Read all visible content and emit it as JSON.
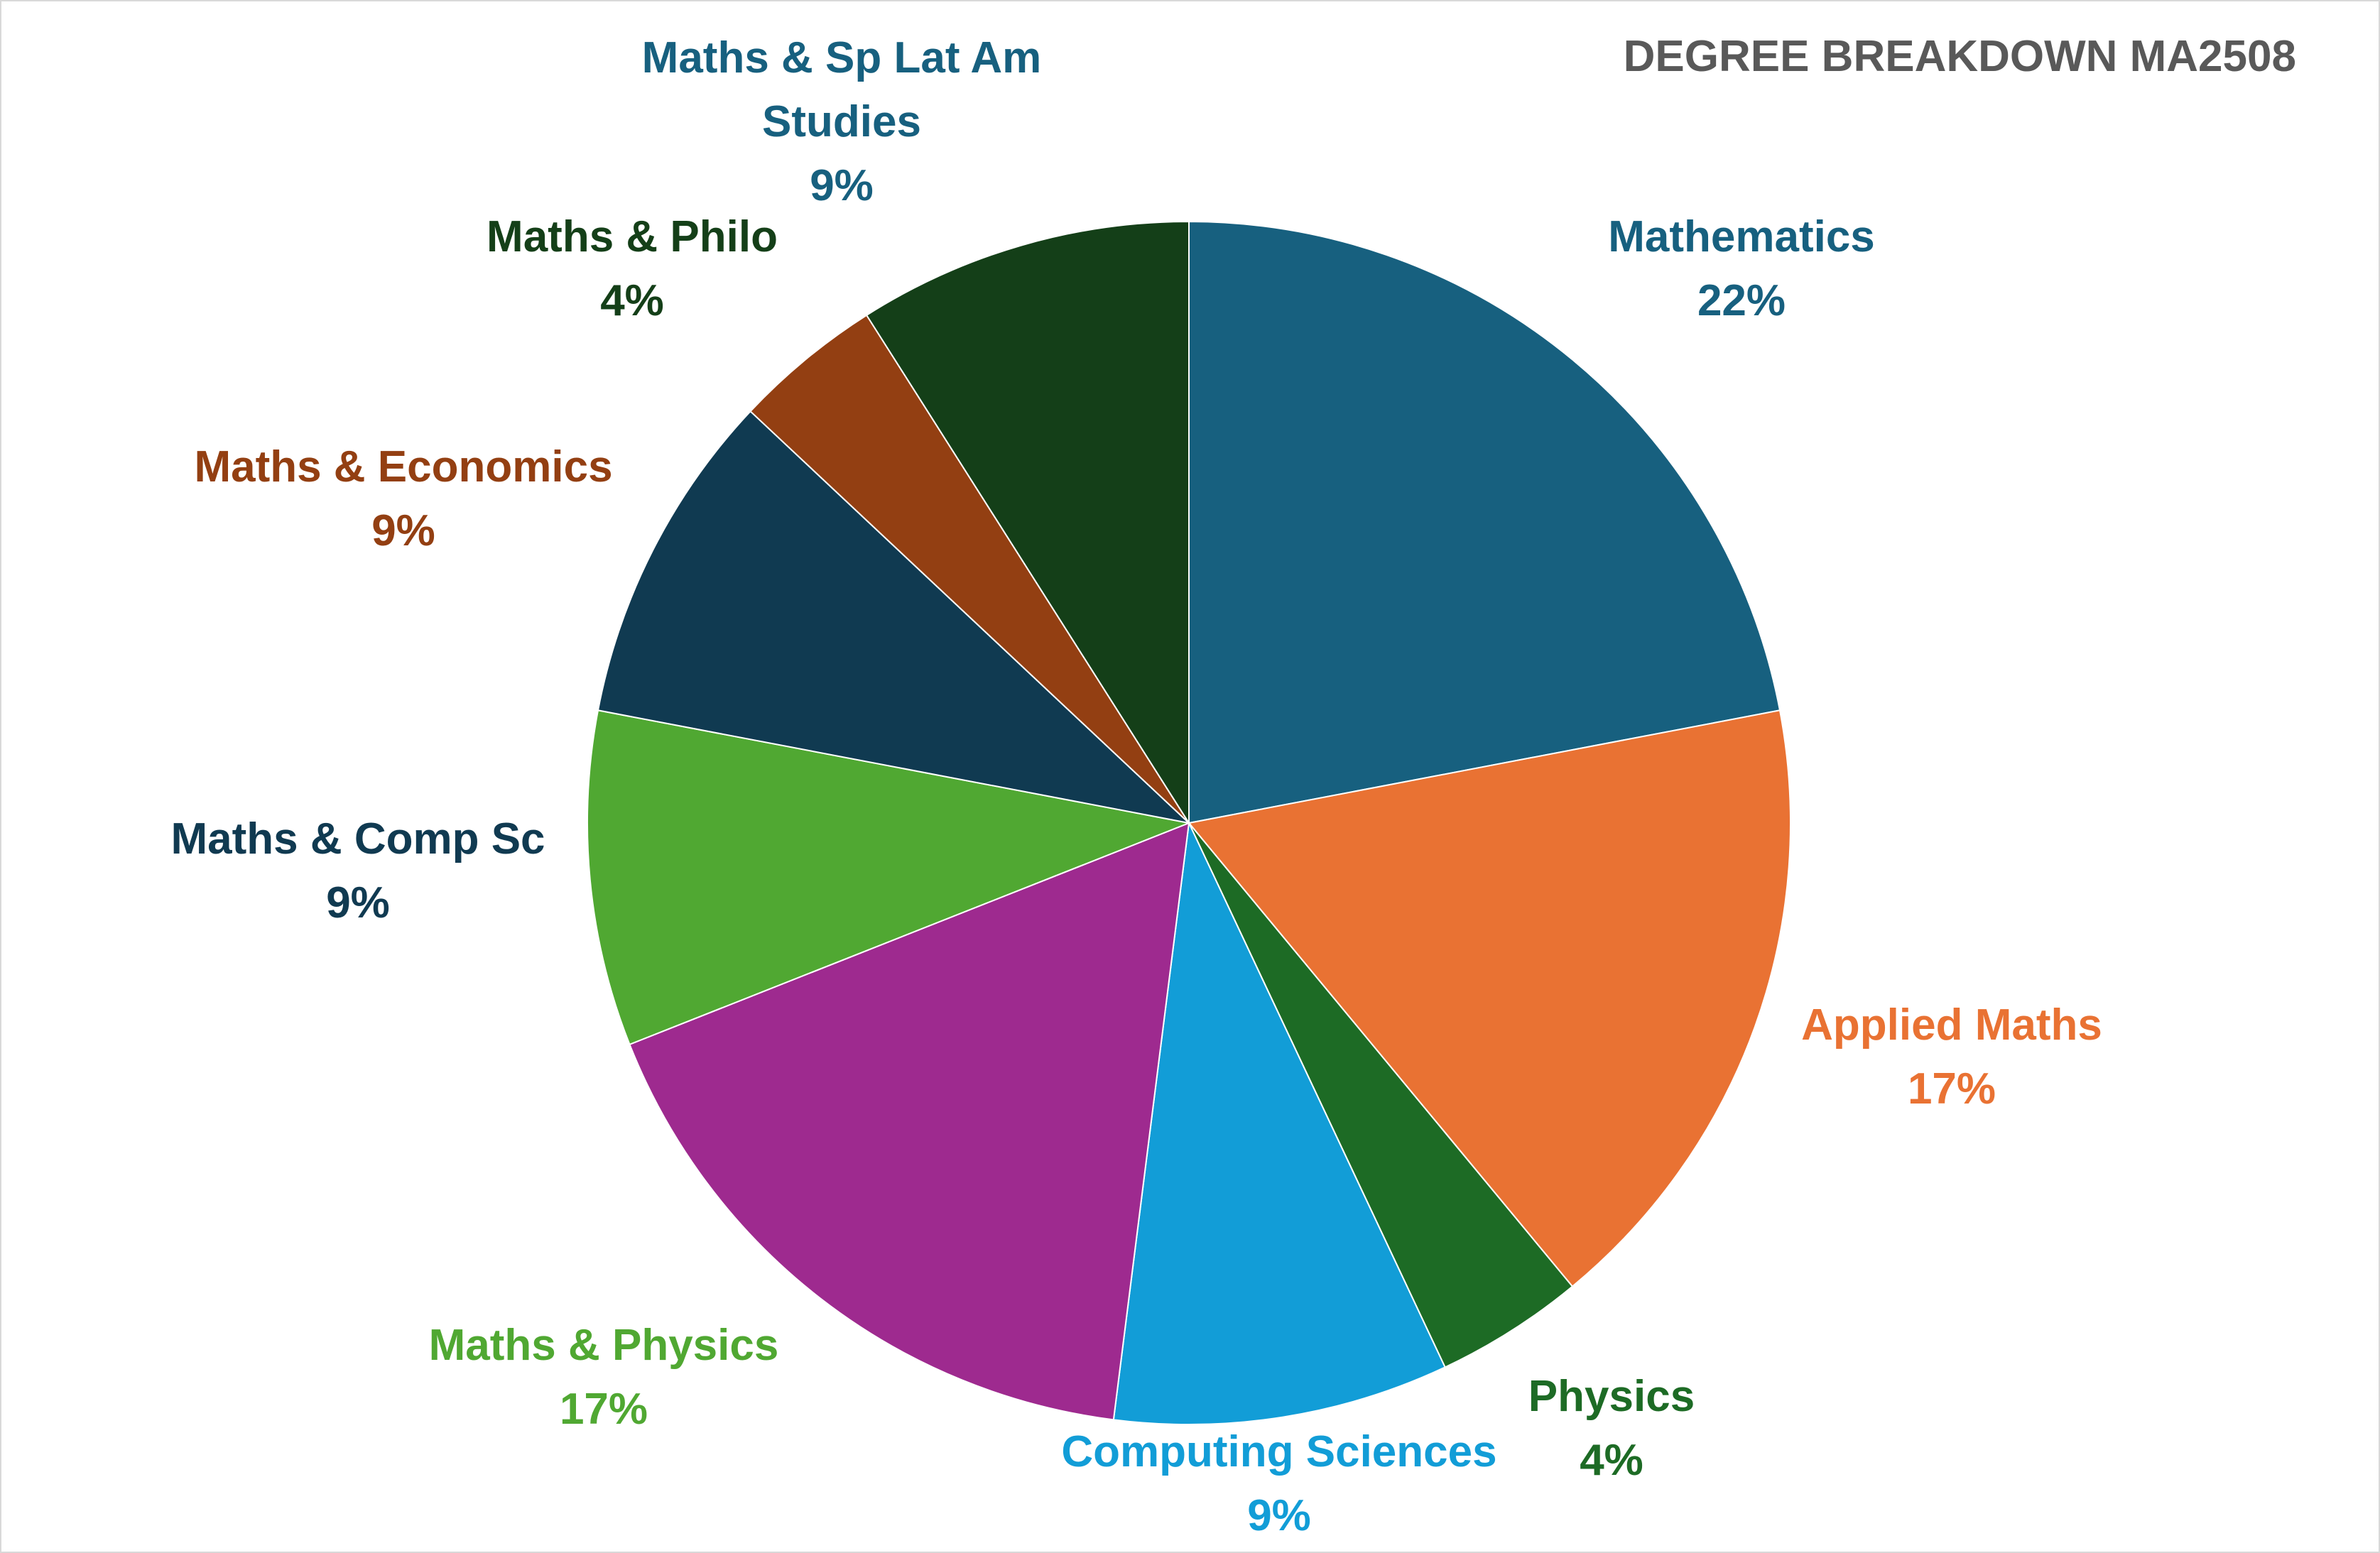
{
  "chart_data": {
    "type": "pie",
    "title": "DEGREE BREAKDOWN MA2508",
    "slices": [
      {
        "label": "Mathematics",
        "value": 22,
        "percent_label": "22%",
        "color": "#17607f"
      },
      {
        "label": "Applied Maths",
        "value": 17,
        "percent_label": "17%",
        "color": "#e97233"
      },
      {
        "label": "Physics",
        "value": 4,
        "percent_label": "4%",
        "color": "#1d6b25"
      },
      {
        "label": "Computing Sciences",
        "value": 9,
        "percent_label": "9%",
        "color": "#129dd7"
      },
      {
        "label": "Maths & Physics",
        "value": 17,
        "percent_label": "17%",
        "color": "#9e2a8f"
      },
      {
        "label": "Maths & Comp Sc",
        "value": 9,
        "percent_label": "9%",
        "color": "#50a832"
      },
      {
        "label": "Maths & Economics",
        "value": 9,
        "percent_label": "9%",
        "color": "#103a51"
      },
      {
        "label": "Maths & Philo",
        "value": 4,
        "percent_label": "4%",
        "color": "#933f12"
      },
      {
        "label": "Maths & Sp Lat Am Studies",
        "value": 9,
        "percent_label": "9%",
        "color": "#143f18"
      }
    ],
    "label_colors": [
      "#17607f",
      "#e97233",
      "#1d6b25",
      "#129dd7",
      "#50a832",
      "#103a51",
      "#933f12",
      "#143f18",
      "#17607f"
    ],
    "legend": "none"
  }
}
